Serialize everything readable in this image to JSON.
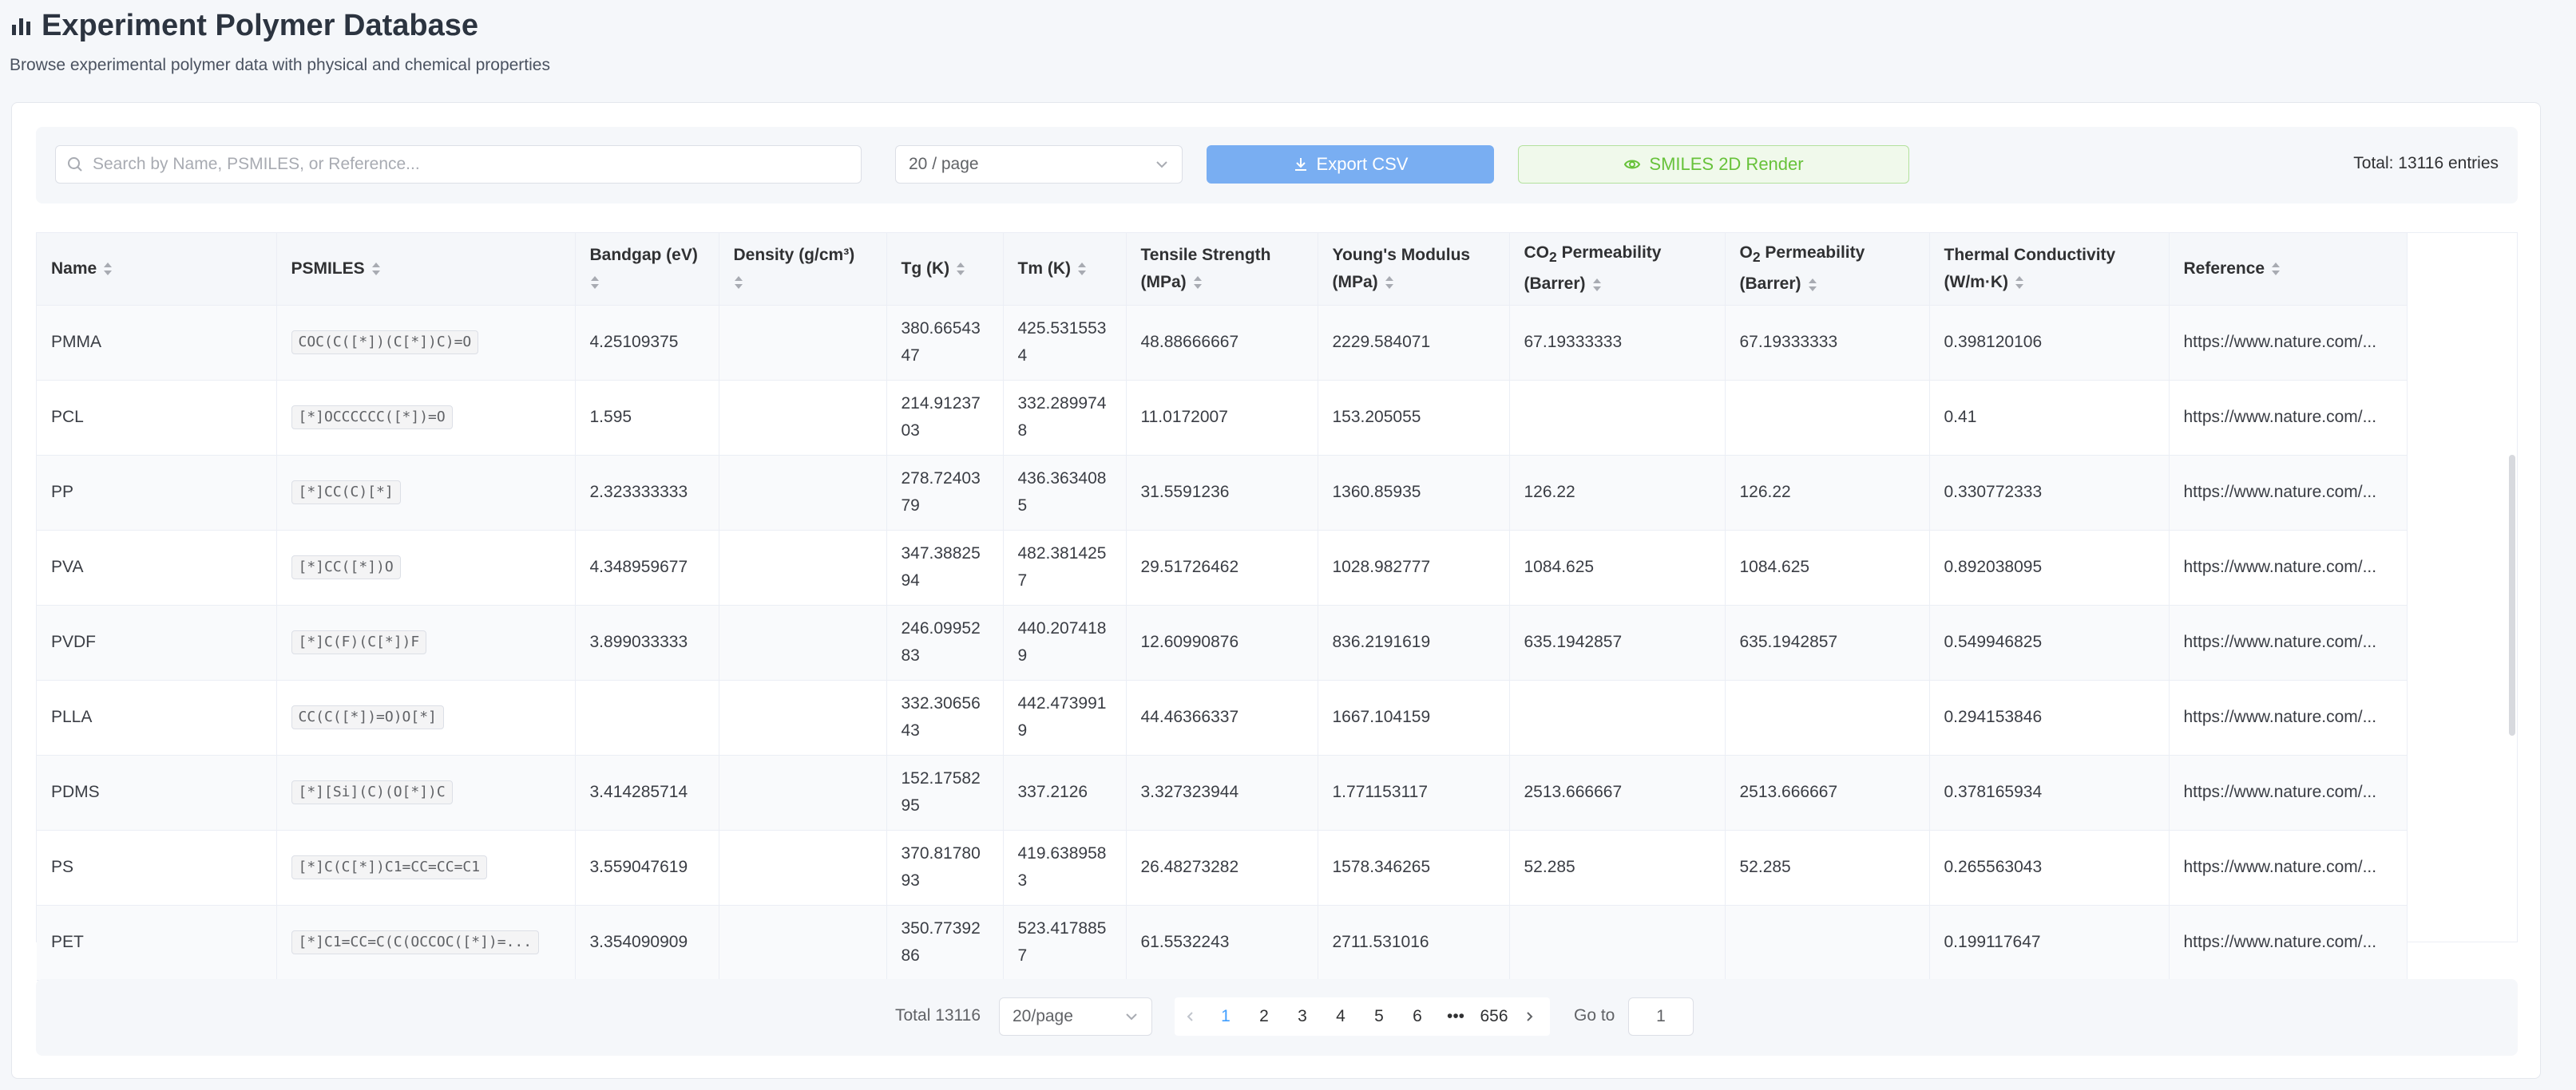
{
  "header": {
    "title": "Experiment Polymer Database",
    "subtitle": "Browse experimental polymer data with physical and chemical properties"
  },
  "toolbar": {
    "search_placeholder": "Search by Name, PSMILES, or Reference...",
    "page_size": "20 / page",
    "export_label": "Export CSV",
    "smiles_label": "SMILES 2D Render",
    "total_entries": "Total: 13116 entries"
  },
  "table": {
    "columns": [
      {
        "key": "name",
        "label": "Name"
      },
      {
        "key": "psmiles",
        "label": "PSMILES"
      },
      {
        "key": "bandgap",
        "label": "Bandgap (eV)"
      },
      {
        "key": "density",
        "label": "Density (g/cm³)"
      },
      {
        "key": "tg",
        "label": "Tg (K)"
      },
      {
        "key": "tm",
        "label": "Tm (K)"
      },
      {
        "key": "tensile",
        "label": "Tensile Strength (MPa)"
      },
      {
        "key": "youngs",
        "label": "Young's Modulus (MPa)"
      },
      {
        "key": "co2_prefix",
        "label": "CO"
      },
      {
        "key": "co2_sub",
        "label": "2"
      },
      {
        "key": "co2_suffix",
        "label": " Permeability (Barrer)"
      },
      {
        "key": "o2_prefix",
        "label": "O"
      },
      {
        "key": "o2_sub",
        "label": "2"
      },
      {
        "key": "o2_suffix",
        "label": " Permeability (Barrer)"
      },
      {
        "key": "thermal",
        "label": "Thermal Conductivity (W/m·K)"
      },
      {
        "key": "reference",
        "label": "Reference"
      }
    ],
    "rows": [
      {
        "name": "PMMA",
        "psmiles": "COC(C([*])(C[*])C)=O",
        "bandgap": "4.25109375",
        "density": "",
        "tg": "380.6654347",
        "tm": "425.5315534",
        "tensile": "48.88666667",
        "youngs": "2229.584071",
        "co2": "67.19333333",
        "o2": "67.19333333",
        "thermal": "0.398120106",
        "reference": "https://www.nature.com/..."
      },
      {
        "name": "PCL",
        "psmiles": "[*]OCCCCCC([*])=O",
        "bandgap": "1.595",
        "density": "",
        "tg": "214.9123703",
        "tm": "332.2899748",
        "tensile": "11.0172007",
        "youngs": "153.205055",
        "co2": "",
        "o2": "",
        "thermal": "0.41",
        "reference": "https://www.nature.com/..."
      },
      {
        "name": "PP",
        "psmiles": "[*]CC(C)[*]",
        "bandgap": "2.323333333",
        "density": "",
        "tg": "278.7240379",
        "tm": "436.3634085",
        "tensile": "31.5591236",
        "youngs": "1360.85935",
        "co2": "126.22",
        "o2": "126.22",
        "thermal": "0.330772333",
        "reference": "https://www.nature.com/..."
      },
      {
        "name": "PVA",
        "psmiles": "[*]CC([*])O",
        "bandgap": "4.348959677",
        "density": "",
        "tg": "347.3882594",
        "tm": "482.3814257",
        "tensile": "29.51726462",
        "youngs": "1028.982777",
        "co2": "1084.625",
        "o2": "1084.625",
        "thermal": "0.892038095",
        "reference": "https://www.nature.com/..."
      },
      {
        "name": "PVDF",
        "psmiles": "[*]C(F)(C[*])F",
        "bandgap": "3.899033333",
        "density": "",
        "tg": "246.0995283",
        "tm": "440.2074189",
        "tensile": "12.60990876",
        "youngs": "836.2191619",
        "co2": "635.1942857",
        "o2": "635.1942857",
        "thermal": "0.549946825",
        "reference": "https://www.nature.com/..."
      },
      {
        "name": "PLLA",
        "psmiles": "CC(C([*])=O)O[*]",
        "bandgap": "",
        "density": "",
        "tg": "332.3065643",
        "tm": "442.4739919",
        "tensile": "44.46366337",
        "youngs": "1667.104159",
        "co2": "",
        "o2": "",
        "thermal": "0.294153846",
        "reference": "https://www.nature.com/..."
      },
      {
        "name": "PDMS",
        "psmiles": "[*][Si](C)(O[*])C",
        "bandgap": "3.414285714",
        "density": "",
        "tg": "152.1758295",
        "tm": "337.2126",
        "tensile": "3.327323944",
        "youngs": "1.771153117",
        "co2": "2513.666667",
        "o2": "2513.666667",
        "thermal": "0.378165934",
        "reference": "https://www.nature.com/..."
      },
      {
        "name": "PS",
        "psmiles": "[*]C(C[*])C1=CC=CC=C1",
        "bandgap": "3.559047619",
        "density": "",
        "tg": "370.8178093",
        "tm": "419.6389583",
        "tensile": "26.48273282",
        "youngs": "1578.346265",
        "co2": "52.285",
        "o2": "52.285",
        "thermal": "0.265563043",
        "reference": "https://www.nature.com/..."
      },
      {
        "name": "PET",
        "psmiles": "[*]C1=CC=C(C(OCCOC([*])=...",
        "bandgap": "3.354090909",
        "density": "",
        "tg": "350.7739286",
        "tm": "523.4178857",
        "tensile": "61.5532243",
        "youngs": "2711.531016",
        "co2": "",
        "o2": "",
        "thermal": "0.199117647",
        "reference": "https://www.nature.com/..."
      }
    ]
  },
  "pagination": {
    "total": "Total 13116",
    "page_size": "20/page",
    "pages": [
      "1",
      "2",
      "3",
      "4",
      "5",
      "6"
    ],
    "ellipsis": "•••",
    "last_page": "656",
    "current": "1",
    "goto_label": "Go to",
    "goto_value": "1"
  },
  "colors": {
    "primary": "#409eff",
    "export_button": "#79aef2",
    "success": "#67c23a"
  }
}
